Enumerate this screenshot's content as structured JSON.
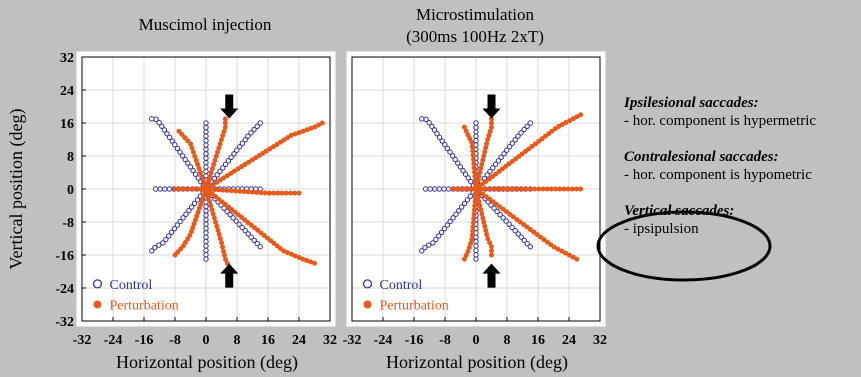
{
  "colors": {
    "background": "#c0c0c0",
    "control": "#3030a0",
    "perturbation": "#e85a1a",
    "arrow": "#000000"
  },
  "chart_data": [
    {
      "type": "scatter",
      "title": "Muscimol injection",
      "subtitle": "",
      "xlabel": "Horizontal position (deg)",
      "ylabel": "Vertical position (deg)",
      "xlim": [
        -32,
        32
      ],
      "ylim": [
        -32,
        32
      ],
      "xticks": [
        "-32",
        "-24",
        "-16",
        "-8",
        "0",
        "8",
        "16",
        "24",
        "32"
      ],
      "yticks": [
        "32",
        "24",
        "16",
        "8",
        "0",
        "-8",
        "-16",
        "-24",
        "-32"
      ],
      "grid": true,
      "legend": {
        "placement": "bottom-left",
        "entries": [
          "Control",
          "Perturbation"
        ]
      },
      "arrows": [
        {
          "direction": "down",
          "at": [
            6,
            20
          ]
        },
        {
          "direction": "up",
          "at": [
            6,
            -21
          ]
        }
      ],
      "series": [
        {
          "name": "Control",
          "marker": "open-circle",
          "trajectories": [
            [
              [
                0,
                0
              ],
              [
                -14,
                17
              ],
              [
                -13,
                17
              ],
              [
                -12,
                16
              ]
            ],
            [
              [
                0,
                0
              ],
              [
                -14,
                -15
              ],
              [
                -13,
                -14
              ],
              [
                -11,
                -13
              ]
            ],
            [
              [
                0,
                0
              ],
              [
                -13,
                0
              ],
              [
                -12,
                0
              ],
              [
                -10,
                0
              ]
            ],
            [
              [
                0,
                0
              ],
              [
                0,
                -17
              ],
              [
                0,
                -15
              ],
              [
                0,
                -12
              ]
            ],
            [
              [
                0,
                0
              ],
              [
                0,
                16
              ],
              [
                0,
                14
              ],
              [
                0,
                12
              ]
            ],
            [
              [
                0,
                0
              ],
              [
                14,
                16
              ],
              [
                13,
                15
              ],
              [
                11,
                13
              ]
            ],
            [
              [
                0,
                0
              ],
              [
                14,
                -14
              ],
              [
                13,
                -13
              ],
              [
                12,
                -12
              ]
            ],
            [
              [
                0,
                0
              ],
              [
                14,
                0
              ],
              [
                13,
                0
              ],
              [
                12,
                0
              ]
            ]
          ]
        },
        {
          "name": "Perturbation",
          "marker": "filled-circle",
          "trajectories": [
            [
              [
                0,
                0
              ],
              [
                -7,
                14
              ],
              [
                -6,
                13
              ],
              [
                -4,
                11
              ]
            ],
            [
              [
                0,
                0
              ],
              [
                -8,
                -16
              ],
              [
                -6,
                -14
              ],
              [
                -4,
                -11
              ]
            ],
            [
              [
                0,
                0
              ],
              [
                -8,
                0
              ],
              [
                -6,
                0
              ],
              [
                -4,
                0
              ]
            ],
            [
              [
                0,
                0
              ],
              [
                5,
                17
              ],
              [
                5,
                15
              ],
              [
                4,
                12
              ]
            ],
            [
              [
                0,
                0
              ],
              [
                6,
                -19
              ],
              [
                5,
                -17
              ],
              [
                4,
                -13
              ]
            ],
            [
              [
                0,
                0
              ],
              [
                30,
                16
              ],
              [
                28,
                15
              ],
              [
                22,
                13
              ]
            ],
            [
              [
                0,
                0
              ],
              [
                28,
                -18
              ],
              [
                25,
                -17
              ],
              [
                20,
                -15
              ]
            ],
            [
              [
                0,
                0
              ],
              [
                24,
                -1
              ],
              [
                21,
                -1
              ],
              [
                16,
                -1
              ]
            ]
          ]
        }
      ]
    },
    {
      "type": "scatter",
      "title": "Microstimulation",
      "subtitle": "(300ms 100Hz 2xT)",
      "xlabel": "Horizontal position (deg)",
      "ylabel": "",
      "xlim": [
        -32,
        32
      ],
      "ylim": [
        -32,
        32
      ],
      "xticks": [
        "-32",
        "-24",
        "-16",
        "-8",
        "0",
        "8",
        "16",
        "24",
        "32"
      ],
      "grid": true,
      "legend": {
        "placement": "bottom-left",
        "entries": [
          "Control",
          "Perturbation"
        ]
      },
      "arrows": [
        {
          "direction": "down",
          "at": [
            4,
            20
          ]
        },
        {
          "direction": "up",
          "at": [
            4,
            -21
          ]
        }
      ],
      "series": [
        {
          "name": "Control",
          "marker": "open-circle",
          "trajectories": [
            [
              [
                0,
                0
              ],
              [
                -14,
                17
              ],
              [
                -13,
                17
              ],
              [
                -12,
                16
              ]
            ],
            [
              [
                0,
                0
              ],
              [
                -14,
                -15
              ],
              [
                -13,
                -14
              ],
              [
                -11,
                -13
              ]
            ],
            [
              [
                0,
                0
              ],
              [
                -13,
                0
              ],
              [
                -12,
                0
              ],
              [
                -10,
                0
              ]
            ],
            [
              [
                0,
                0
              ],
              [
                0,
                -17
              ],
              [
                0,
                -15
              ],
              [
                0,
                -12
              ]
            ],
            [
              [
                0,
                0
              ],
              [
                0,
                16
              ],
              [
                0,
                14
              ],
              [
                0,
                12
              ]
            ],
            [
              [
                0,
                0
              ],
              [
                14,
                16
              ],
              [
                13,
                15
              ],
              [
                11,
                13
              ]
            ],
            [
              [
                0,
                0
              ],
              [
                14,
                -14
              ],
              [
                13,
                -13
              ],
              [
                12,
                -12
              ]
            ],
            [
              [
                0,
                0
              ],
              [
                14,
                0
              ],
              [
                13,
                0
              ],
              [
                12,
                0
              ]
            ]
          ]
        },
        {
          "name": "Perturbation",
          "marker": "filled-circle",
          "trajectories": [
            [
              [
                0,
                0
              ],
              [
                -3,
                15
              ],
              [
                -2,
                13
              ],
              [
                -1,
                11
              ]
            ],
            [
              [
                0,
                0
              ],
              [
                -3,
                -17
              ],
              [
                -2,
                -15
              ],
              [
                -1,
                -12
              ]
            ],
            [
              [
                0,
                0
              ],
              [
                -6,
                0
              ],
              [
                -4,
                0
              ],
              [
                -3,
                0
              ]
            ],
            [
              [
                0,
                0
              ],
              [
                4,
                17
              ],
              [
                4,
                15
              ],
              [
                3,
                12
              ]
            ],
            [
              [
                0,
                0
              ],
              [
                4,
                -16
              ],
              [
                4,
                -14
              ],
              [
                3,
                -12
              ]
            ],
            [
              [
                0,
                0
              ],
              [
                27,
                18
              ],
              [
                25,
                17
              ],
              [
                21,
                15
              ]
            ],
            [
              [
                0,
                0
              ],
              [
                26,
                -17
              ],
              [
                24,
                -16
              ],
              [
                20,
                -14
              ]
            ],
            [
              [
                0,
                0
              ],
              [
                27,
                0
              ],
              [
                24,
                0
              ],
              [
                18,
                0
              ]
            ]
          ]
        }
      ]
    }
  ],
  "side": {
    "ipsi_heading": "Ipsilesional saccades:",
    "ipsi_body": "- hor. component is hypermetric",
    "contra_heading": "Contralesional saccades:",
    "contra_body": "- hor. component is hypometric",
    "vert_heading": "Vertical saccades:",
    "vert_body": "- ipsipulsion"
  }
}
